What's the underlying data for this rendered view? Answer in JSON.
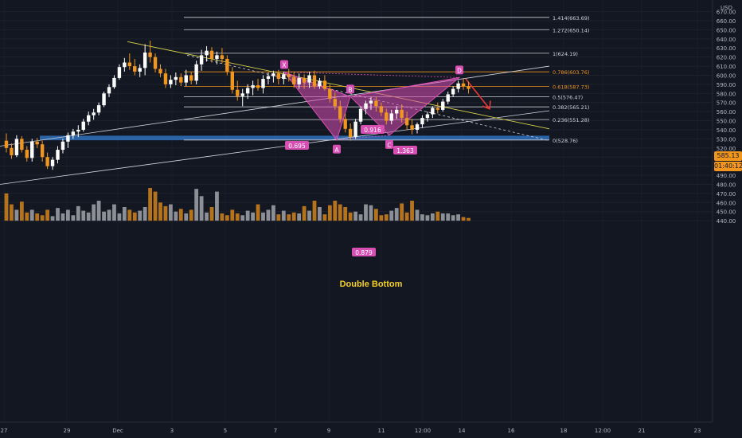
{
  "colors": {
    "background": "#131722",
    "up": "#ffffff",
    "down": "#f0961e",
    "volume_up": "#8d8f96",
    "volume_down": "#b5731c",
    "pattern": "#d84fb4",
    "support": "#2f6db5",
    "fib_line": "#cfcfd4",
    "fib_highlight": "#f0961e",
    "trendline": "#d6d24a",
    "arrow": "#e53935",
    "annotation": "#f5d020"
  },
  "header": {
    "unit": "USD"
  },
  "price_axis": {
    "current_price": "585.13",
    "countdown": "01:40:12"
  },
  "chart_data": {
    "type": "candlestick",
    "y_range": [
      435,
      670
    ],
    "y_ticks": [
      440,
      450,
      460,
      470,
      480,
      490,
      500,
      510,
      520,
      530,
      540,
      550,
      560,
      570,
      580,
      590,
      600,
      610,
      620,
      630,
      640,
      650,
      660,
      670
    ],
    "x_ticks": [
      "27",
      "29",
      "Dec",
      "3",
      "5",
      "7",
      "9",
      "11",
      "12:00",
      "14",
      "16",
      "18",
      "12:00",
      "21",
      "23"
    ],
    "candles": [
      [
        528,
        536,
        515,
        520
      ],
      [
        520,
        525,
        508,
        512
      ],
      [
        512,
        534,
        510,
        530
      ],
      [
        530,
        533,
        515,
        518
      ],
      [
        518,
        522,
        505,
        509
      ],
      [
        509,
        530,
        505,
        527
      ],
      [
        527,
        531,
        520,
        524
      ],
      [
        524,
        528,
        505,
        510
      ],
      [
        510,
        515,
        497,
        500
      ],
      [
        500,
        510,
        496,
        507
      ],
      [
        507,
        522,
        503,
        518
      ],
      [
        518,
        530,
        514,
        527
      ],
      [
        527,
        537,
        520,
        534
      ],
      [
        534,
        541,
        530,
        538
      ],
      [
        538,
        545,
        532,
        540
      ],
      [
        540,
        552,
        538,
        549
      ],
      [
        549,
        560,
        545,
        556
      ],
      [
        556,
        563,
        551,
        559
      ],
      [
        559,
        570,
        556,
        567
      ],
      [
        567,
        582,
        565,
        580
      ],
      [
        580,
        590,
        576,
        587
      ],
      [
        587,
        600,
        585,
        597
      ],
      [
        597,
        612,
        595,
        609
      ],
      [
        609,
        619,
        604,
        614
      ],
      [
        614,
        624,
        606,
        610
      ],
      [
        610,
        618,
        600,
        604
      ],
      [
        604,
        612,
        598,
        608
      ],
      [
        608,
        634,
        600,
        625
      ],
      [
        625,
        638,
        614,
        620
      ],
      [
        620,
        624,
        603,
        607
      ],
      [
        607,
        612,
        598,
        602
      ],
      [
        602,
        607,
        586,
        590
      ],
      [
        590,
        600,
        586,
        595
      ],
      [
        595,
        603,
        589,
        598
      ],
      [
        598,
        602,
        588,
        592
      ],
      [
        592,
        606,
        588,
        600
      ],
      [
        600,
        604,
        590,
        594
      ],
      [
        594,
        616,
        590,
        612
      ],
      [
        612,
        628,
        605,
        622
      ],
      [
        622,
        632,
        615,
        627
      ],
      [
        627,
        631,
        614,
        618
      ],
      [
        618,
        626,
        612,
        622
      ],
      [
        622,
        630,
        613,
        618
      ],
      [
        618,
        622,
        600,
        604
      ],
      [
        604,
        609,
        580,
        584
      ],
      [
        584,
        594,
        572,
        577
      ],
      [
        577,
        585,
        566,
        580
      ],
      [
        580,
        590,
        574,
        586
      ],
      [
        586,
        594,
        578,
        589
      ],
      [
        589,
        596,
        583,
        586
      ],
      [
        586,
        600,
        580,
        596
      ],
      [
        596,
        603,
        590,
        599
      ],
      [
        599,
        605,
        592,
        602
      ],
      [
        602,
        606,
        590,
        596
      ],
      [
        596,
        604,
        590,
        601
      ],
      [
        601,
        607,
        593,
        598
      ],
      [
        598,
        603,
        586,
        590
      ],
      [
        590,
        602,
        585,
        597
      ],
      [
        597,
        601,
        585,
        592
      ],
      [
        592,
        604,
        586,
        600
      ],
      [
        600,
        605,
        585,
        588
      ],
      [
        588,
        597,
        585,
        594
      ],
      [
        594,
        600,
        583,
        585
      ],
      [
        585,
        590,
        570,
        574
      ],
      [
        574,
        581,
        562,
        566
      ],
      [
        566,
        572,
        548,
        552
      ],
      [
        552,
        558,
        537,
        541
      ],
      [
        541,
        547,
        528,
        532
      ],
      [
        532,
        552,
        530,
        549
      ],
      [
        549,
        566,
        546,
        563
      ],
      [
        563,
        572,
        557,
        569
      ],
      [
        569,
        576,
        562,
        572
      ],
      [
        572,
        576,
        560,
        566
      ],
      [
        566,
        570,
        555,
        559
      ],
      [
        559,
        563,
        546,
        550
      ],
      [
        550,
        562,
        546,
        558
      ],
      [
        558,
        566,
        552,
        562
      ],
      [
        562,
        568,
        548,
        553
      ],
      [
        553,
        560,
        540,
        545
      ],
      [
        545,
        552,
        535,
        540
      ],
      [
        540,
        548,
        536,
        546
      ],
      [
        546,
        556,
        542,
        553
      ],
      [
        553,
        560,
        549,
        557
      ],
      [
        557,
        566,
        553,
        564
      ],
      [
        564,
        570,
        558,
        562
      ],
      [
        562,
        574,
        560,
        571
      ],
      [
        571,
        582,
        568,
        579
      ],
      [
        579,
        588,
        576,
        585
      ],
      [
        585,
        594,
        581,
        591
      ],
      [
        591,
        596,
        584,
        588
      ],
      [
        588,
        593,
        580,
        585
      ]
    ],
    "volumes": [
      470,
      458,
      452,
      461,
      449,
      452,
      448,
      446,
      452,
      445,
      454,
      448,
      452,
      446,
      456,
      451,
      449,
      458,
      462,
      450,
      452,
      458,
      448,
      455,
      452,
      449,
      451,
      455,
      476,
      472,
      460,
      456,
      458,
      450,
      453,
      448,
      452,
      475,
      467,
      449,
      455,
      472,
      448,
      446,
      452,
      448,
      446,
      451,
      449,
      458,
      449,
      452,
      457,
      447,
      451,
      447,
      449,
      448,
      456,
      451,
      462,
      455,
      447,
      457,
      462,
      458,
      455,
      449,
      450,
      447,
      458,
      457,
      453,
      446,
      447,
      451,
      454,
      459,
      449,
      462,
      452,
      447,
      446,
      448,
      450,
      448,
      448,
      446,
      447,
      444,
      443
    ],
    "harmonic_pattern": {
      "points": [
        {
          "label": "X",
          "date": "7",
          "price": 603.5
        },
        {
          "label": "A",
          "date": "9",
          "price": 528.8
        },
        {
          "label": "B",
          "date": "10",
          "price": 576.5
        },
        {
          "label": "C",
          "date": "11",
          "price": 534.0
        },
        {
          "label": "D",
          "date": "13",
          "price": 597.5
        }
      ],
      "ratios": [
        "0.695",
        "0.916",
        "1.363",
        "0.879"
      ]
    },
    "fibonacci": [
      {
        "label": "1.414(663.69)",
        "price": 663.69
      },
      {
        "label": "1.272(650.14)",
        "price": 650.14
      },
      {
        "label": "1(624.19)",
        "price": 624.19
      },
      {
        "label": "0.786(603.76)",
        "price": 603.76
      },
      {
        "label": "0.618(587.73)",
        "price": 587.73
      },
      {
        "label": "0.5(576.47)",
        "price": 576.47
      },
      {
        "label": "0.382(565.21)",
        "price": 565.21
      },
      {
        "label": "0.236(551.28)",
        "price": 551.28
      },
      {
        "label": "0(528.76)",
        "price": 528.76
      }
    ],
    "support_zone": [
      528.5,
      533.5
    ],
    "annotation": "Double Bottom"
  }
}
